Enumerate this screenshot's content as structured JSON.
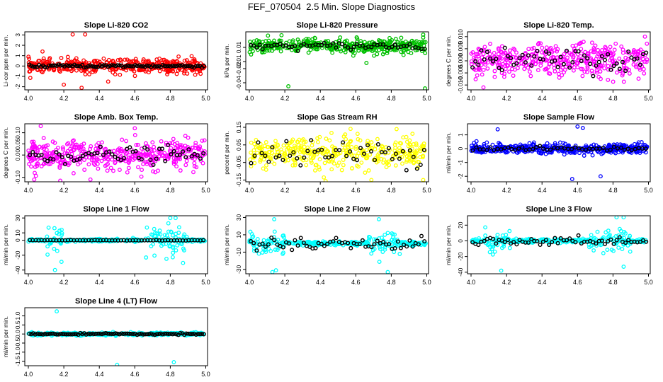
{
  "main_title": "FEF_070504  2.5 Min. Slope Diagnostics",
  "colors": {
    "red": "#ff0000",
    "green": "#00c000",
    "magenta": "#ff00ff",
    "yellow": "#ffff00",
    "blue": "#0000ff",
    "cyan": "#00ffff",
    "black": "#000000"
  },
  "chart_data": [
    {
      "type": "scatter",
      "title": "Slope Li-820 CO2",
      "ylabel": "Li-cor ppm per min.",
      "xlim": [
        3.98,
        5.01
      ],
      "ylim": [
        -2.3,
        3.3
      ],
      "xticks": [
        "4.0",
        "4.2",
        "4.4",
        "4.6",
        "4.8",
        "5.0"
      ],
      "yticks": [
        -2,
        -1,
        0,
        1,
        2,
        3
      ],
      "ytick_labels": [
        "-2",
        "-1",
        "0",
        "1",
        "2",
        "3"
      ],
      "color": "red",
      "spread": 0.55,
      "outliers": [
        [
          4.25,
          3.05
        ],
        [
          4.32,
          3.05
        ],
        [
          4.3,
          -2.1
        ],
        [
          4.2,
          -1.8
        ],
        [
          4.08,
          1.4
        ],
        [
          4.45,
          -1.5
        ]
      ],
      "black_spread": 0.12,
      "n_points": 420,
      "black_points": 90
    },
    {
      "type": "scatter",
      "title": "Slope Li-820 Pressure",
      "ylabel": "kPa per min.",
      "xlim": [
        3.98,
        5.01
      ],
      "ylim": [
        -0.05,
        0.032
      ],
      "xticks": [
        "4.0",
        "4.2",
        "4.4",
        "4.6",
        "4.8",
        "5.0"
      ],
      "yticks": [
        -0.04,
        -0.02,
        -0.01,
        0.01
      ],
      "ytick_labels": [
        "-0.04",
        "-0.02",
        "-0.01",
        "0.01"
      ],
      "color": "green",
      "spread": 0.008,
      "offset": 0.012,
      "outliers": [
        [
          4.22,
          -0.045
        ],
        [
          4.99,
          -0.048
        ],
        [
          4.66,
          -0.012
        ],
        [
          4.01,
          0.0
        ],
        [
          4.98,
          0.028
        ],
        [
          4.98,
          0.024
        ]
      ],
      "black_spread": 0.004,
      "n_points": 420,
      "black_points": 60
    },
    {
      "type": "scatter",
      "title": "Slope Li-820 Temp.",
      "ylabel": "degrees C per min.",
      "xlim": [
        3.98,
        5.01
      ],
      "ylim": [
        -0.012,
        0.012
      ],
      "xticks": [
        "4.0",
        "4.2",
        "4.4",
        "4.6",
        "4.8",
        "5.0"
      ],
      "yticks": [
        -0.01,
        -0.005,
        0.0,
        0.005,
        0.01
      ],
      "ytick_labels": [
        "-0.010",
        "-0.005",
        "0.000",
        "0.005",
        "0.010"
      ],
      "color": "magenta",
      "spread": 0.0055,
      "outliers": [
        [
          4.98,
          0.01
        ],
        [
          4.07,
          -0.011
        ],
        [
          4.61,
          0.007
        ]
      ],
      "black_spread": 0.004,
      "n_points": 400,
      "black_points": 60
    },
    {
      "type": "scatter",
      "title": "Slope Amb. Box Temp.",
      "ylabel": "degrees C per min.",
      "xlim": [
        3.98,
        5.01
      ],
      "ylim": [
        -0.12,
        0.14
      ],
      "xticks": [
        "4.0",
        "4.2",
        "4.4",
        "4.6",
        "4.8",
        "5.0"
      ],
      "yticks": [
        -0.1,
        0.0,
        0.05,
        0.1
      ],
      "ytick_labels": [
        "-0.10",
        "0.00",
        "0.05",
        "0.10"
      ],
      "color": "magenta",
      "spread": 0.055,
      "outliers": [
        [
          4.07,
          0.13
        ],
        [
          4.18,
          -0.115
        ],
        [
          4.35,
          -0.11
        ],
        [
          4.6,
          0.12
        ]
      ],
      "black_spread": 0.03,
      "n_points": 420,
      "black_points": 60
    },
    {
      "type": "scatter",
      "title": "Slope Gas Stream RH",
      "ylabel": "percent per min.",
      "xlim": [
        3.98,
        5.01
      ],
      "ylim": [
        -0.16,
        0.17
      ],
      "xticks": [
        "4.0",
        "4.2",
        "4.4",
        "4.6",
        "4.8",
        "5.0"
      ],
      "yticks": [
        -0.15,
        -0.05,
        0.05,
        0.15
      ],
      "ytick_labels": [
        "-0.15",
        "-0.05",
        "0.05",
        "0.15"
      ],
      "color": "yellow",
      "spread": 0.075,
      "outliers": [
        [
          4.43,
          -0.155
        ],
        [
          4.98,
          -0.15
        ],
        [
          4.83,
          0.14
        ]
      ],
      "black_spread": 0.06,
      "n_points": 380,
      "black_points": 50
    },
    {
      "type": "scatter",
      "title": "Slope Sample Flow",
      "ylabel": "ml/min per min.",
      "xlim": [
        3.98,
        5.01
      ],
      "ylim": [
        -2.4,
        1.8
      ],
      "xticks": [
        "4.0",
        "4.2",
        "4.4",
        "4.6",
        "4.8",
        "5.0"
      ],
      "yticks": [
        -2,
        -1,
        0,
        1
      ],
      "ytick_labels": [
        "-2",
        "-1",
        "0",
        "1"
      ],
      "color": "blue",
      "spread": 0.3,
      "outliers": [
        [
          4.57,
          -2.2
        ],
        [
          4.6,
          1.6
        ],
        [
          4.15,
          1.4
        ],
        [
          4.73,
          -2.0
        ],
        [
          4.63,
          1.5
        ]
      ],
      "black_spread": 0.12,
      "n_points": 420,
      "black_points": 50
    },
    {
      "type": "scatter",
      "title": "Slope Line 1 Flow",
      "ylabel": "ml/min per min.",
      "xlim": [
        3.98,
        5.01
      ],
      "ylim": [
        -45,
        33
      ],
      "xticks": [
        "4.0",
        "4.2",
        "4.4",
        "4.6",
        "4.8",
        "5.0"
      ],
      "yticks": [
        -40,
        -20,
        0,
        10,
        30
      ],
      "ytick_labels": [
        "-40",
        "-20",
        "0",
        "10",
        "30"
      ],
      "color": "cyan",
      "spread": 1.5,
      "burst": [
        [
          4.1,
          4.2
        ],
        [
          4.66,
          4.9
        ]
      ],
      "burst_spread": 18,
      "outliers": [
        [
          4.15,
          -40
        ],
        [
          4.8,
          30
        ],
        [
          4.83,
          30
        ]
      ],
      "black_spread": 0.3,
      "n_points": 320,
      "black_points": 60
    },
    {
      "type": "scatter",
      "title": "Slope Line 2 Flow",
      "ylabel": "ml/min per min.",
      "xlim": [
        3.98,
        5.01
      ],
      "ylim": [
        -35,
        32
      ],
      "xticks": [
        "4.0",
        "4.2",
        "4.4",
        "4.6",
        "4.8",
        "5.0"
      ],
      "yticks": [
        -30,
        -10,
        10,
        30
      ],
      "ytick_labels": [
        "-30",
        "-10",
        "10",
        "30"
      ],
      "color": "cyan",
      "spread": 2,
      "burst": [
        [
          4.0,
          4.2
        ],
        [
          4.67,
          4.85
        ]
      ],
      "burst_spread": 12,
      "outliers": [
        [
          4.13,
          -33
        ],
        [
          4.15,
          -31
        ],
        [
          4.78,
          -33
        ],
        [
          4.14,
          28
        ],
        [
          4.73,
          28
        ]
      ],
      "black_spread": 6,
      "n_points": 320,
      "black_points": 60
    },
    {
      "type": "scatter",
      "title": "Slope Line 3 Flow",
      "ylabel": "ml/min per min.",
      "xlim": [
        3.98,
        5.01
      ],
      "ylim": [
        -42,
        32
      ],
      "xticks": [
        "4.0",
        "4.2",
        "4.4",
        "4.6",
        "4.8",
        "5.0"
      ],
      "yticks": [
        -40,
        -20,
        0,
        20
      ],
      "ytick_labels": [
        "-40",
        "-20",
        "0",
        "20"
      ],
      "color": "cyan",
      "spread": 2,
      "burst": [
        [
          4.08,
          4.22
        ],
        [
          4.66,
          4.9
        ]
      ],
      "burst_spread": 13,
      "outliers": [
        [
          4.17,
          -38
        ],
        [
          4.86,
          -33
        ],
        [
          4.82,
          30
        ],
        [
          4.86,
          30
        ]
      ],
      "black_spread": 4,
      "n_points": 320,
      "black_points": 60
    },
    {
      "type": "scatter",
      "title": "Slope Line 4 (LT) Flow",
      "ylabel": "ml/min per min.",
      "xlim": [
        3.98,
        5.01
      ],
      "ylim": [
        -1.75,
        1.45
      ],
      "xticks": [
        "4.0",
        "4.2",
        "4.4",
        "4.6",
        "4.8",
        "5.0"
      ],
      "yticks": [
        -1.5,
        -1.0,
        -0.5,
        0.0,
        0.5,
        1.0
      ],
      "ytick_labels": [
        "-1.5",
        "-1.0",
        "-0.5",
        "0.0",
        "0.5",
        "1.0"
      ],
      "color": "cyan",
      "spread": 0.06,
      "outliers": [
        [
          4.16,
          1.25
        ],
        [
          4.5,
          -1.7
        ],
        [
          4.82,
          -1.55
        ]
      ],
      "black_spread": 0.03,
      "n_points": 380,
      "black_points": 90
    }
  ]
}
